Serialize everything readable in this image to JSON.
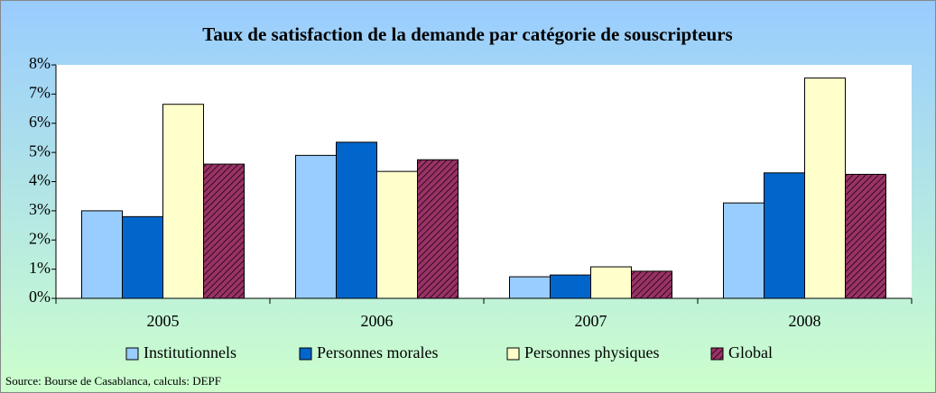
{
  "chart_data": {
    "type": "bar",
    "title": "Taux de satisfaction de la demande par catégorie de souscripteurs",
    "categories": [
      "2005",
      "2006",
      "2007",
      "2008"
    ],
    "series": [
      {
        "name": "Institutionnels",
        "color": "#99ccff",
        "values": [
          3.0,
          4.9,
          0.74,
          3.27
        ]
      },
      {
        "name": "Personnes morales",
        "color": "#0066cc",
        "values": [
          2.8,
          5.35,
          0.8,
          4.3
        ]
      },
      {
        "name": "Personnes physiques",
        "color": "#ffffcc",
        "values": [
          6.65,
          4.35,
          1.08,
          7.55
        ]
      },
      {
        "name": "Global",
        "color": "#993366",
        "values": [
          4.6,
          4.75,
          0.93,
          4.25
        ]
      }
    ],
    "ylim": [
      0,
      8
    ],
    "yticks": [
      {
        "value": 0,
        "label": "0%"
      },
      {
        "value": 1,
        "label": "1%"
      },
      {
        "value": 2,
        "label": "2%"
      },
      {
        "value": 3,
        "label": "3%"
      },
      {
        "value": 4,
        "label": "4%"
      },
      {
        "value": 5,
        "label": "5%"
      },
      {
        "value": 6,
        "label": "6%"
      },
      {
        "value": 7,
        "label": "7%"
      },
      {
        "value": 8,
        "label": "8%"
      }
    ],
    "grid": false,
    "source": "Source: Bourse de Casablanca, calculs: DEPF"
  }
}
